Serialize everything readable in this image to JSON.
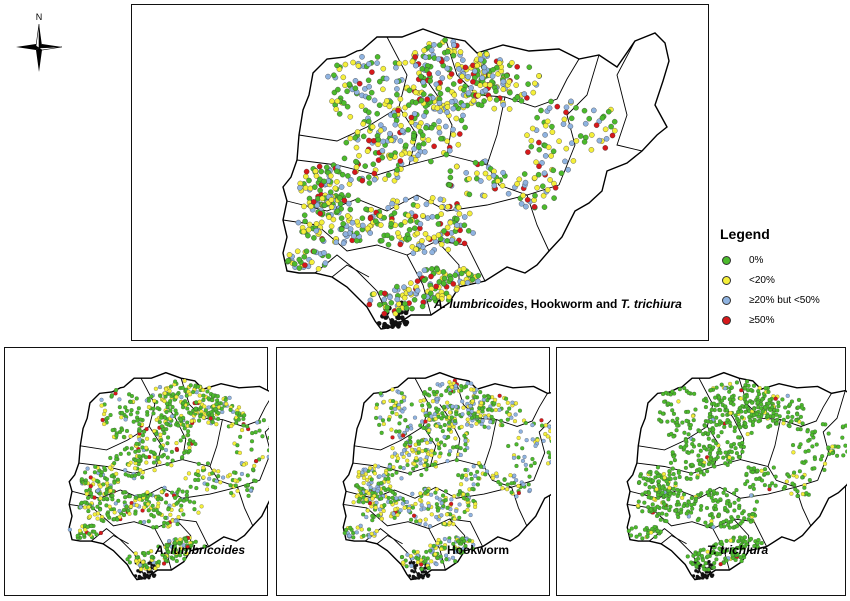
{
  "compass": {
    "label": "N"
  },
  "legend": {
    "title": "Legend",
    "items": [
      {
        "label": "0%",
        "color": "#4cba2c"
      },
      {
        "label": "<20%",
        "color": "#f4ef3a"
      },
      {
        "label": "≥20% but <50%",
        "color": "#8fb3e0"
      },
      {
        "label": "≥50%",
        "color": "#d6191b"
      }
    ]
  },
  "maps": [
    {
      "id": "combined",
      "title_parts": [
        "A. lumbricoides",
        ", ",
        "Hookworm",
        " and ",
        "T. trichiura"
      ],
      "weights": [
        0.34,
        0.32,
        0.24,
        0.1
      ]
    },
    {
      "id": "ascaris",
      "title_parts": [
        "A. lumbricoides"
      ],
      "weights": [
        0.62,
        0.24,
        0.1,
        0.04
      ]
    },
    {
      "id": "hookworm",
      "title_parts": [
        "Hookworm"
      ],
      "weights": [
        0.46,
        0.28,
        0.24,
        0.02
      ]
    },
    {
      "id": "trichuris",
      "title_parts": [
        "T. trichiura"
      ],
      "weights": [
        0.92,
        0.06,
        0.01,
        0.01
      ]
    }
  ]
}
